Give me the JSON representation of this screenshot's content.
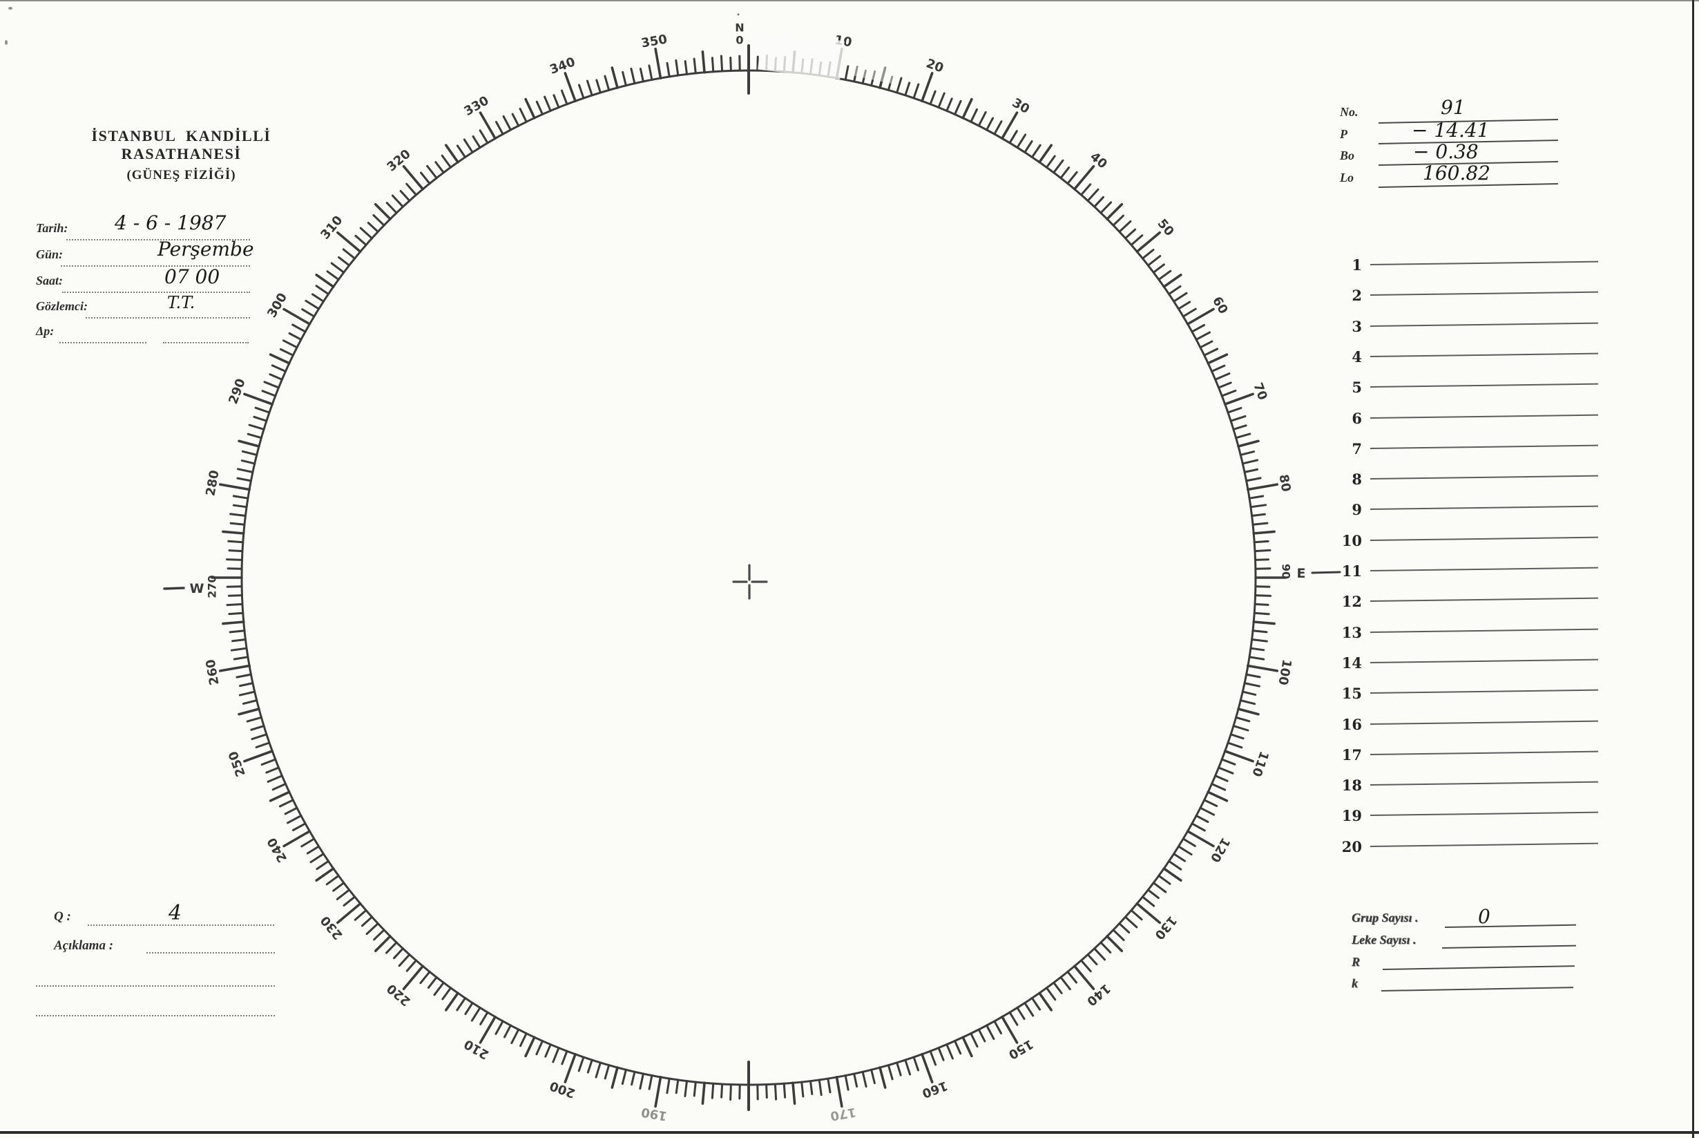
{
  "header": {
    "line1": "İSTANBUL KANDİLLİ RASATHANESİ",
    "line2": "(GÜNEŞ FİZİĞİ)"
  },
  "observation_fields": [
    {
      "label": "Tarih:",
      "value": "4 - 6 - 1987"
    },
    {
      "label": "Gün:",
      "value": "Perşembe"
    },
    {
      "label": "Saat:",
      "value": "07 00"
    },
    {
      "label": "Gözlemci:",
      "value": "T.T."
    },
    {
      "label": "Δp:",
      "value": ""
    }
  ],
  "solar_params": [
    {
      "label": "No.",
      "value": "91"
    },
    {
      "label": "P",
      "value": "− 14.41"
    },
    {
      "label": "Bo",
      "value": "− 0.38"
    },
    {
      "label": "Lo",
      "value": "160.82"
    }
  ],
  "spot_rows": [
    {
      "num": "1",
      "value": ""
    },
    {
      "num": "2",
      "value": ""
    },
    {
      "num": "3",
      "value": ""
    },
    {
      "num": "4",
      "value": ""
    },
    {
      "num": "5",
      "value": ""
    },
    {
      "num": "6",
      "value": ""
    },
    {
      "num": "7",
      "value": ""
    },
    {
      "num": "8",
      "value": ""
    },
    {
      "num": "9",
      "value": ""
    },
    {
      "num": "10",
      "value": ""
    },
    {
      "num": "11",
      "value": ""
    },
    {
      "num": "12",
      "value": ""
    },
    {
      "num": "13",
      "value": ""
    },
    {
      "num": "14",
      "value": ""
    },
    {
      "num": "15",
      "value": ""
    },
    {
      "num": "16",
      "value": ""
    },
    {
      "num": "17",
      "value": ""
    },
    {
      "num": "18",
      "value": ""
    },
    {
      "num": "19",
      "value": ""
    },
    {
      "num": "20",
      "value": ""
    }
  ],
  "summary_fields": [
    {
      "label": "Grup Sayısı .",
      "value": "0"
    },
    {
      "label": "Leke Sayısı .",
      "value": ""
    },
    {
      "label": "R",
      "value": ""
    },
    {
      "label": "k",
      "value": ""
    }
  ],
  "quality": {
    "label": "Q :",
    "value": "4"
  },
  "notes": {
    "label": "Açıklama :"
  },
  "dial": {
    "degree_labels": [
      "10",
      "20",
      "30",
      "40",
      "50",
      "60",
      "70",
      "80",
      "90",
      "100",
      "110",
      "120",
      "130",
      "140",
      "150",
      "160",
      "170",
      "190",
      "200",
      "210",
      "220",
      "230",
      "240",
      "250",
      "260",
      "270",
      "280",
      "290",
      "300",
      "310",
      "320",
      "330",
      "340",
      "350"
    ],
    "faint_labels": {
      "170": 0.5,
      "190": 0.55
    },
    "compass": {
      "north": "N",
      "north_zero": "0",
      "east": "E",
      "west": "W"
    },
    "tick_step_deg": 1,
    "medium_every_deg": 5,
    "major_every_deg": 10
  },
  "colors": {
    "ink": "#3c3c3c",
    "paper": "#fbfbf8",
    "handwriting": "#1b1b1b"
  }
}
